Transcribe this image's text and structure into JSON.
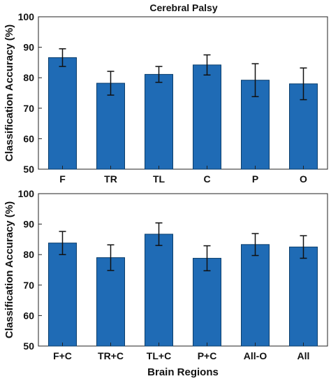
{
  "figure": {
    "bar_color": "#1f6bb5",
    "bar_edge_color": "#0a3d6b",
    "axis_color": "#222222"
  },
  "chart_data": [
    {
      "type": "bar",
      "title": "Cerebral Palsy",
      "xlabel": "",
      "ylabel": "Classification Accuracy (%)",
      "ylim": [
        50,
        100
      ],
      "yticks": [
        50,
        60,
        70,
        80,
        90,
        100
      ],
      "categories": [
        "F",
        "TR",
        "TL",
        "C",
        "P",
        "O"
      ],
      "values": [
        86.6,
        78.2,
        81.1,
        84.2,
        79.2,
        78.0
      ],
      "errors": [
        2.9,
        3.9,
        2.6,
        3.3,
        5.4,
        5.2
      ],
      "grid": false
    },
    {
      "type": "bar",
      "title": "",
      "xlabel": "Brain Regions",
      "ylabel": "Classification Accuracy (%)",
      "ylim": [
        50,
        100
      ],
      "yticks": [
        50,
        60,
        70,
        80,
        90,
        100
      ],
      "categories": [
        "F+C",
        "TR+C",
        "TL+C",
        "P+C",
        "All-O",
        "All"
      ],
      "values": [
        83.8,
        79.0,
        86.7,
        78.8,
        83.3,
        82.5
      ],
      "errors": [
        3.8,
        4.2,
        3.7,
        4.1,
        3.6,
        3.7
      ],
      "grid": false
    }
  ]
}
